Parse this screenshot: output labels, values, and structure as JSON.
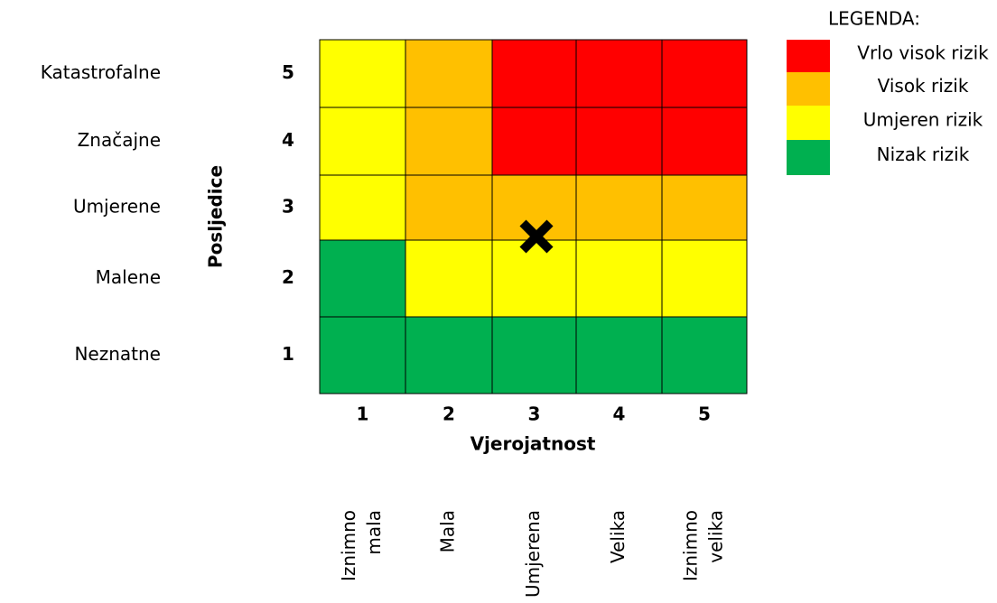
{
  "legend": {
    "title": "LEGENDA:",
    "items": [
      {
        "label": "Vrlo visok rizik",
        "color": "#ff0000"
      },
      {
        "label": "Visok rizik",
        "color": "#ffc000"
      },
      {
        "label": "Umjeren rizik",
        "color": "#ffff00"
      },
      {
        "label": "Nizak rizik",
        "color": "#00b050"
      }
    ]
  },
  "matrix": {
    "y_title": "Posljedice",
    "x_title": "Vjerojatnost",
    "rows": [
      {
        "label": "Katastrofalne",
        "number": 5,
        "cells": [
          "#ffff00",
          "#ffc000",
          "#ff0000",
          "#ff0000",
          "#ff0000"
        ]
      },
      {
        "label": "Značajne",
        "number": 4,
        "cells": [
          "#ffff00",
          "#ffc000",
          "#ff0000",
          "#ff0000",
          "#ff0000"
        ]
      },
      {
        "label": "Umjerene",
        "number": 3,
        "cells": [
          "#ffff00",
          "#ffc000",
          "#ffc000",
          "#ffc000",
          "#ffc000"
        ]
      },
      {
        "label": "Malene",
        "number": 2,
        "cells": [
          "#00b050",
          "#ffff00",
          "#ffff00",
          "#ffff00",
          "#ffff00"
        ]
      },
      {
        "label": "Neznatne",
        "number": 1,
        "cells": [
          "#00b050",
          "#00b050",
          "#00b050",
          "#00b050",
          "#00b050"
        ]
      }
    ],
    "columns": [
      {
        "number": 1,
        "label": [
          "Iznimno",
          "mala"
        ]
      },
      {
        "number": 2,
        "label": [
          "Mala"
        ]
      },
      {
        "number": 3,
        "label": [
          "Umjerena"
        ]
      },
      {
        "number": 4,
        "label": [
          "Velika"
        ]
      },
      {
        "number": 5,
        "label": [
          "Iznimno",
          "velika"
        ]
      }
    ]
  }
}
